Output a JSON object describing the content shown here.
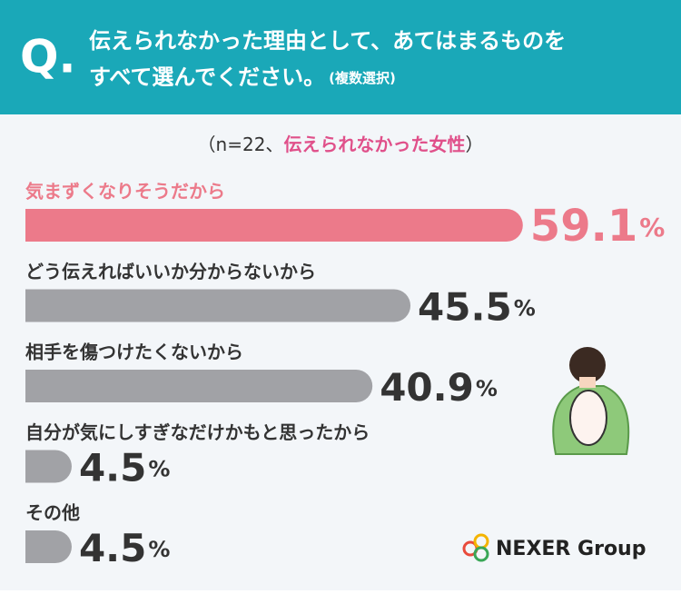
{
  "chart_data": {
    "type": "hbar",
    "question_mark": "Q.",
    "title_lines": [
      "伝えられなかった理由として、あてはまるものを",
      "すべて選んでください。"
    ],
    "title_note": "(複数選択)",
    "subtitle_parts": [
      "（n=22、",
      "伝えられなかった女性",
      "）"
    ],
    "categories": [
      "気まずくなりそうだから",
      "どう伝えればいいか分からないから",
      "相手を傷つけたくないから",
      "自分が気にしすぎなだけかもと思ったから",
      "その他"
    ],
    "values": [
      59.1,
      45.5,
      40.9,
      4.5,
      4.5
    ],
    "value_labels": [
      "59.1%",
      "45.5%",
      "40.9%",
      "4.5%",
      "4.5%"
    ],
    "bar_color": "#a1a2a6",
    "highlight_index": 0,
    "highlight_color": "#ec7a8a",
    "logo": "NEXER Group"
  }
}
